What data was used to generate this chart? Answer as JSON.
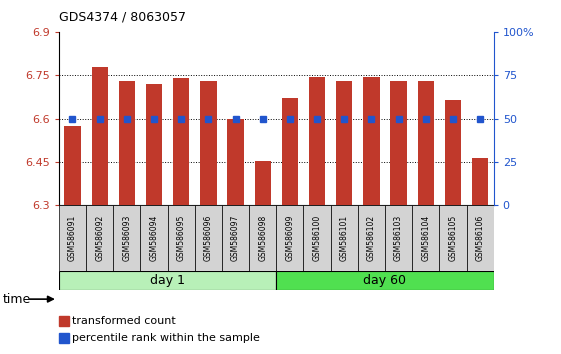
{
  "title": "GDS4374 / 8063057",
  "samples": [
    "GSM586091",
    "GSM586092",
    "GSM586093",
    "GSM586094",
    "GSM586095",
    "GSM586096",
    "GSM586097",
    "GSM586098",
    "GSM586099",
    "GSM586100",
    "GSM586101",
    "GSM586102",
    "GSM586103",
    "GSM586104",
    "GSM586105",
    "GSM586106"
  ],
  "transformed_count": [
    6.575,
    6.78,
    6.73,
    6.72,
    6.74,
    6.73,
    6.6,
    6.455,
    6.67,
    6.745,
    6.73,
    6.745,
    6.73,
    6.73,
    6.665,
    6.465
  ],
  "percentile_rank": [
    50,
    50,
    50,
    50,
    50,
    50,
    50,
    50,
    50,
    50,
    50,
    50,
    50,
    50,
    50,
    50
  ],
  "day1_samples": 8,
  "day60_samples": 8,
  "ylim_left": [
    6.3,
    6.9
  ],
  "ylim_right": [
    0,
    100
  ],
  "yticks_left": [
    6.3,
    6.45,
    6.6,
    6.75,
    6.9
  ],
  "yticks_right": [
    0,
    25,
    50,
    75,
    100
  ],
  "bar_color": "#C0392B",
  "bar_bottom": 6.3,
  "percentile_color": "#2155CD",
  "grid_color": "black",
  "day1_color": "#b8f0b8",
  "day60_color": "#50e050",
  "sample_bg_color": "#D3D3D3",
  "legend_red_label": "transformed count",
  "legend_blue_label": "percentile rank within the sample",
  "time_label": "time",
  "day1_label": "day 1",
  "day60_label": "day 60"
}
